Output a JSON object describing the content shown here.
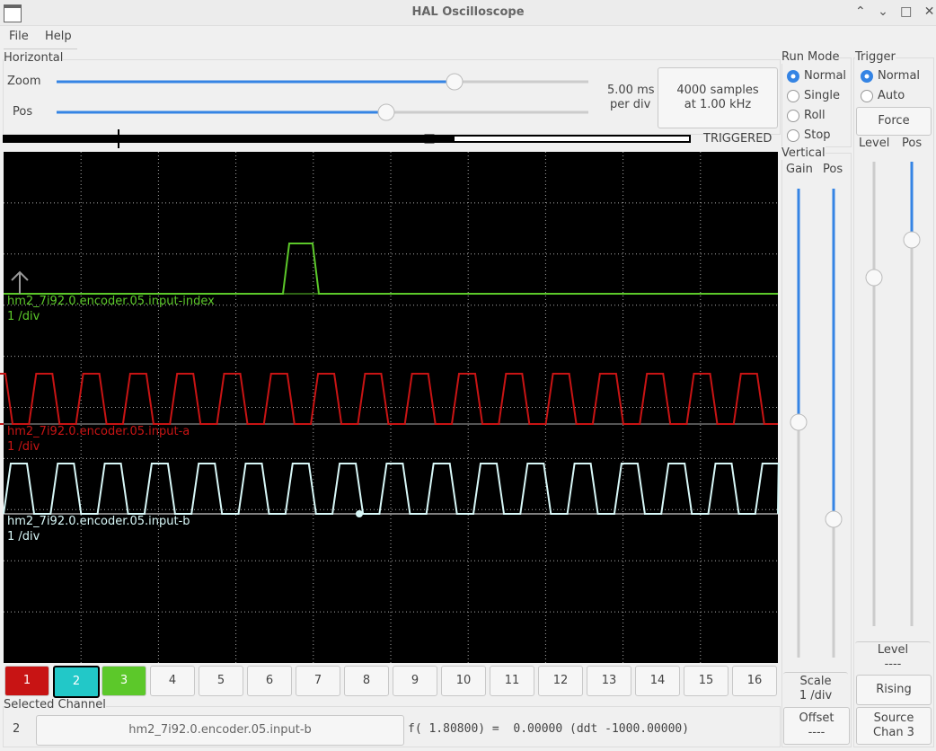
{
  "window": {
    "title": "HAL Oscilloscope"
  },
  "menu": [
    "File",
    "Help"
  ],
  "horizontal": {
    "label": "Horizontal",
    "zoom_label": "Zoom",
    "pos_label": "Pos",
    "rate": "5.00 ms",
    "rate_unit": "per div",
    "samples": "4000 samples",
    "sample_rate": "at 1.00 kHz",
    "status": "TRIGGERED"
  },
  "run_mode": {
    "label": "Run Mode",
    "options": [
      "Normal",
      "Single",
      "Roll",
      "Stop"
    ],
    "selected": 0
  },
  "trigger": {
    "label": "Trigger",
    "options": [
      "Normal",
      "Auto"
    ],
    "selected": 0,
    "force": "Force",
    "level_label": "Level",
    "pos_label": "Pos",
    "level_title": "Level",
    "level_value": "----",
    "edge": "Rising",
    "source_label": "Source",
    "source_value": "Chan  3"
  },
  "vertical": {
    "label": "Vertical",
    "gain_label": "Gain",
    "pos_label": "Pos",
    "scale_label": "Scale",
    "scale_value": "1 /div",
    "offset_label": "Offset",
    "offset_value": "----"
  },
  "traces": [
    {
      "name": "hm2_7i92.0.encoder.05.input-index",
      "scale": "1 /div",
      "color": "#5cc82a"
    },
    {
      "name": "hm2_7i92.0.encoder.05.input-a",
      "scale": "1 /div",
      "color": "#c81414"
    },
    {
      "name": "hm2_7i92.0.encoder.05.input-b",
      "scale": "1 /div",
      "color": "#d8f8f8"
    }
  ],
  "channels": [
    "1",
    "2",
    "3",
    "4",
    "5",
    "6",
    "7",
    "8",
    "9",
    "10",
    "11",
    "12",
    "13",
    "14",
    "15",
    "16"
  ],
  "selected_channel": {
    "label": "Selected Channel",
    "number": "2",
    "name": "hm2_7i92.0.encoder.05.input-b",
    "readout": "f( 1.80800) =  0.00000 (ddt -1000.00000)"
  }
}
